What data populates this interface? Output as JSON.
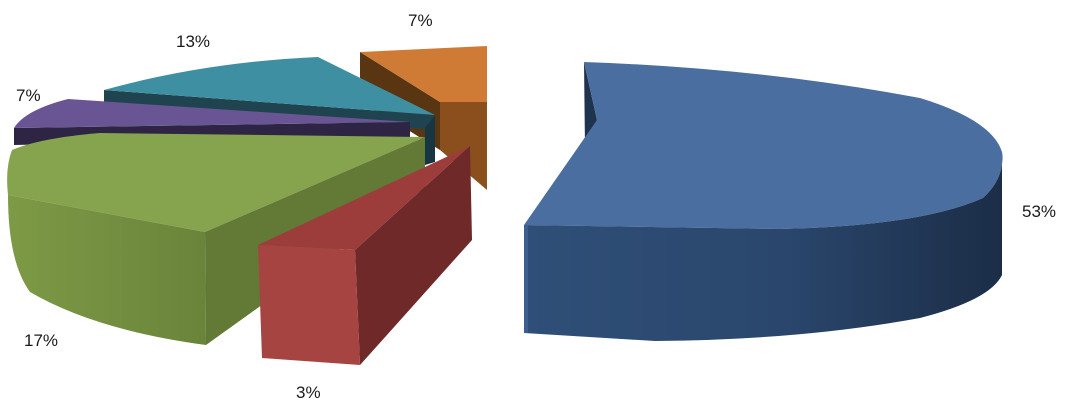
{
  "chart_data": {
    "type": "pie",
    "title": "",
    "exploded": true,
    "three_d": true,
    "legend": "none",
    "slices": [
      {
        "label": "53%",
        "value": 53,
        "color": "#4a6ea0"
      },
      {
        "label": "3%",
        "value": 3,
        "color": "#a64442"
      },
      {
        "label": "17%",
        "value": 17,
        "color": "#86a34d"
      },
      {
        "label": "7%",
        "value": 7,
        "color": "#6b5591"
      },
      {
        "label": "13%",
        "value": 13,
        "color": "#3c93a9"
      },
      {
        "label": "7%",
        "value": 7,
        "color": "#d6843a"
      }
    ]
  }
}
